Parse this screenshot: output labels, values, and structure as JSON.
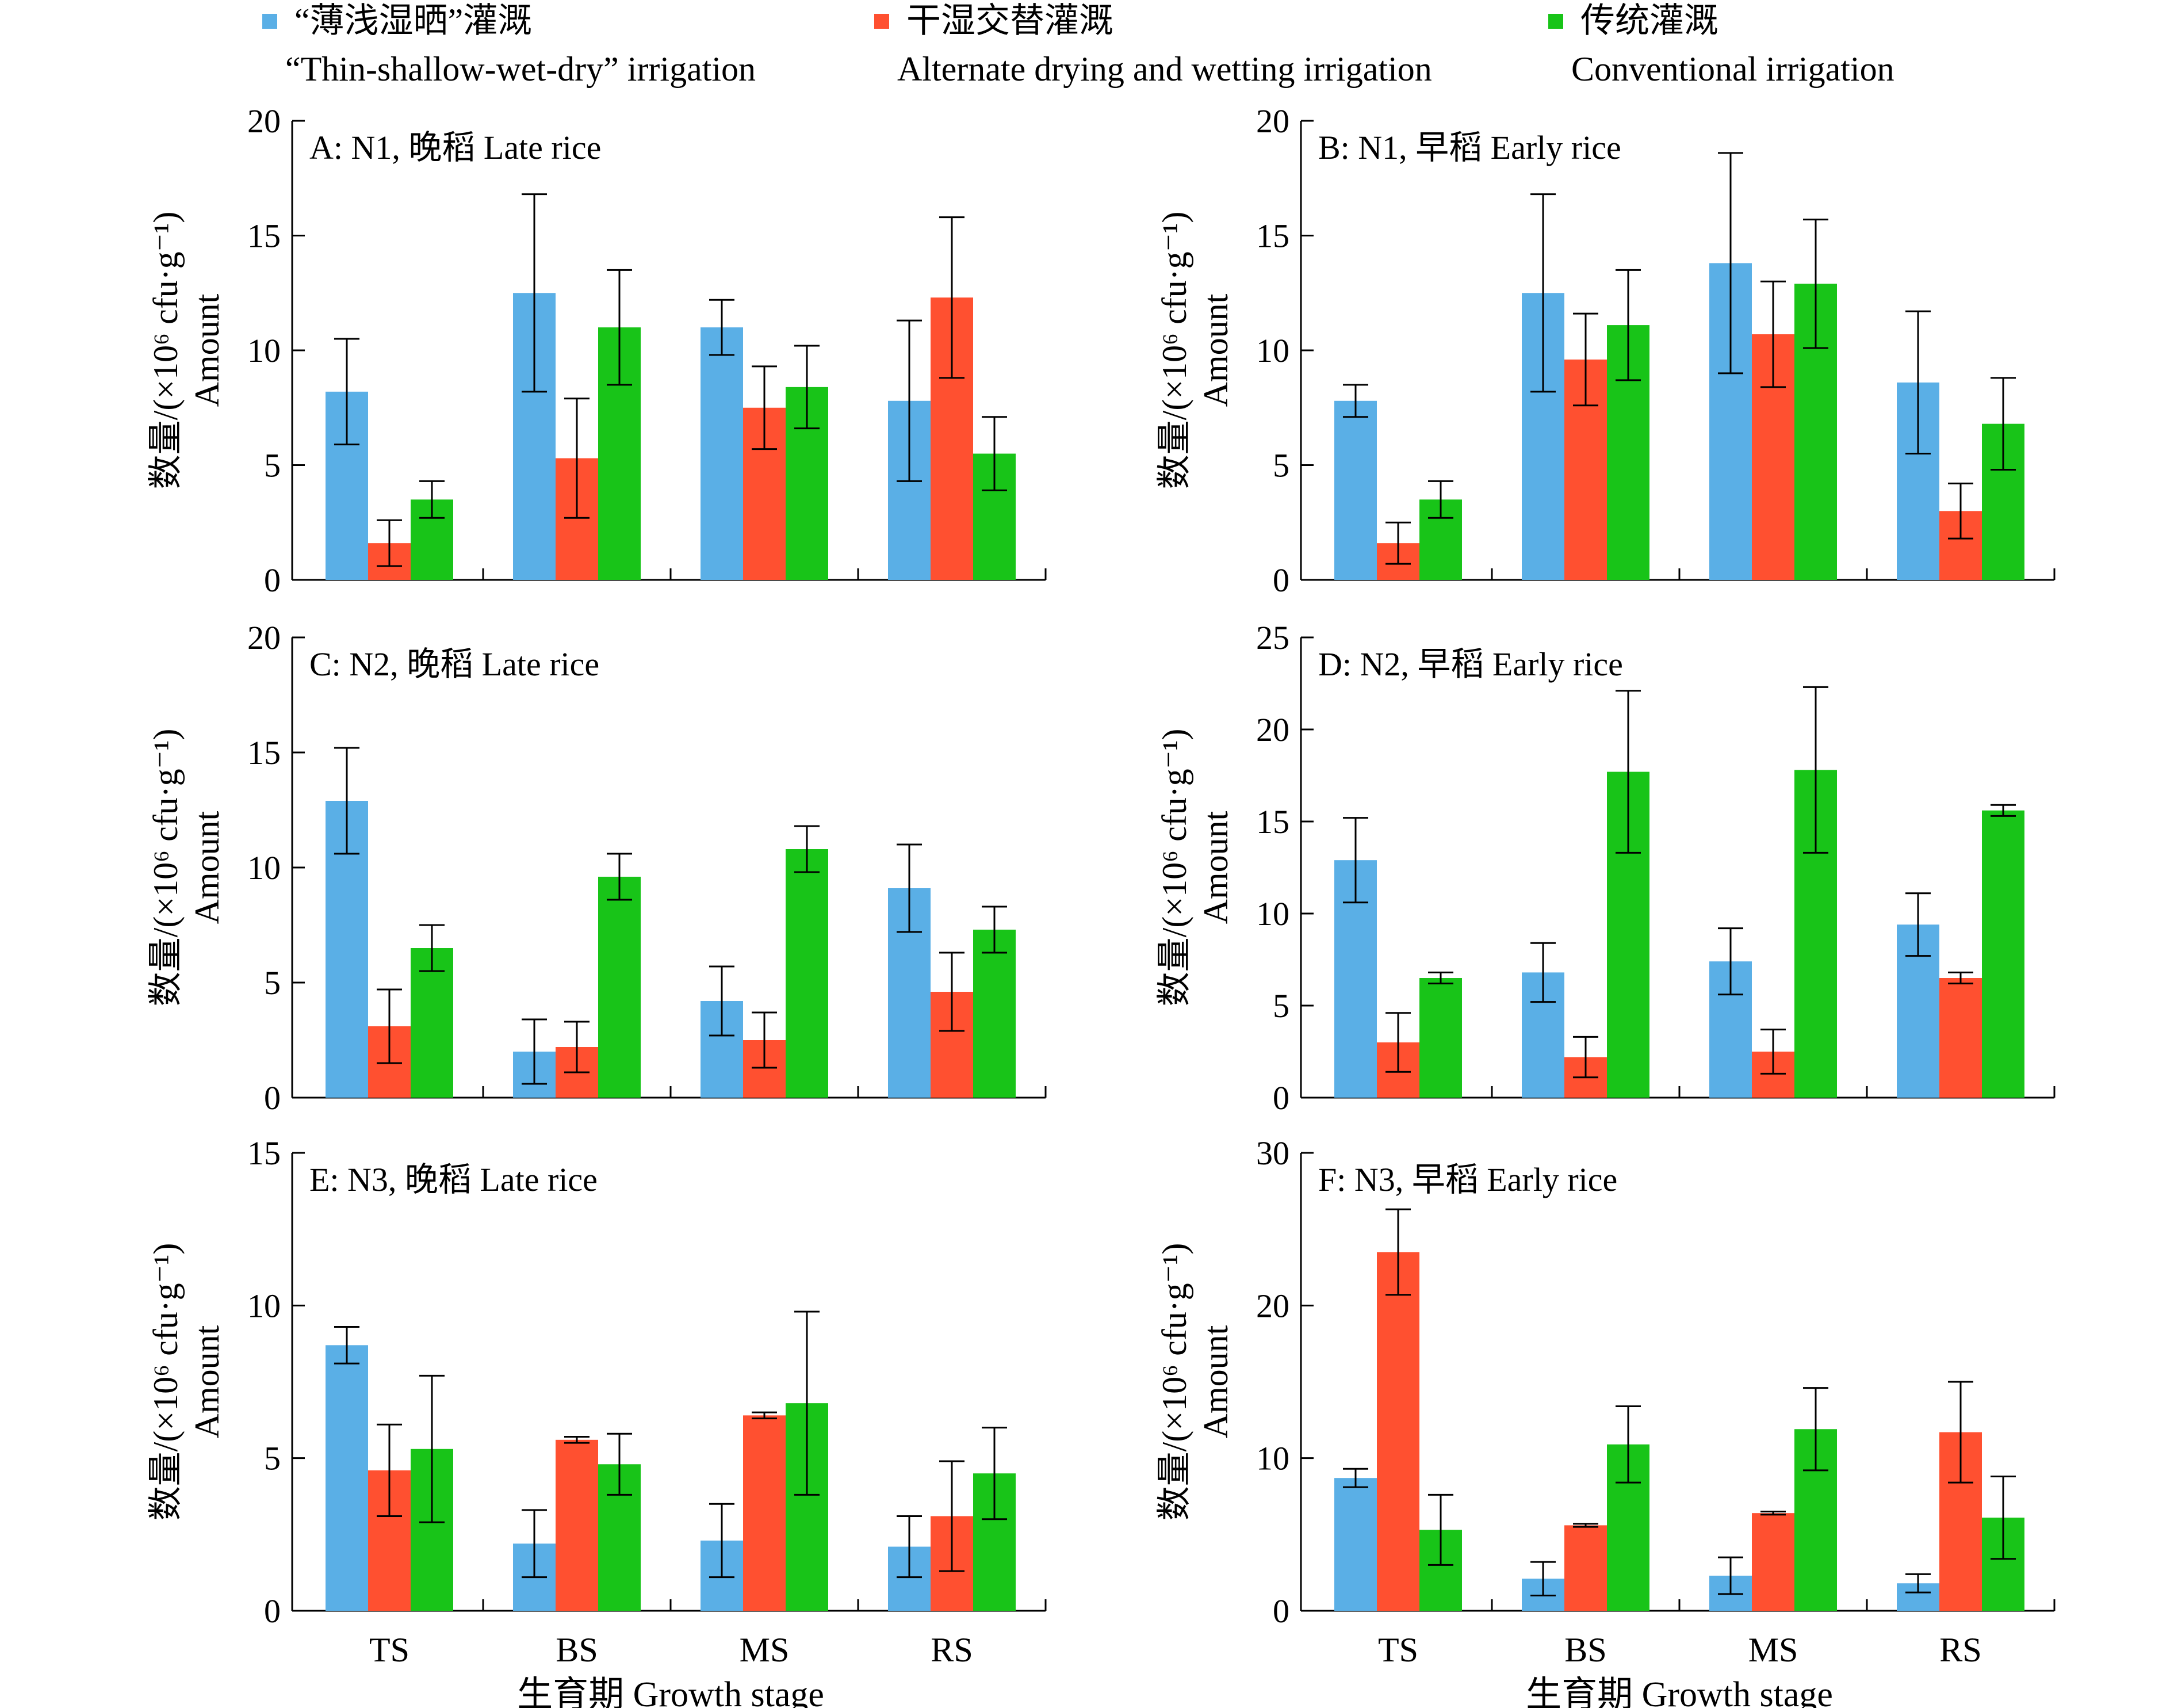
{
  "legend": [
    {
      "zh": "“薄浅湿晒”灌溉",
      "en": "“Thin-shallow-wet-dry” irrigation",
      "color": "#5aafe6"
    },
    {
      "zh": "干湿交替灌溉",
      "en": "Alternate drying and wetting irrigation",
      "color": "#ff5030"
    },
    {
      "zh": "传统灌溉",
      "en": "Conventional irrigation",
      "color": "#18c418"
    }
  ],
  "ylabel_zh": "数量/(×10⁶ cfu·g⁻¹)",
  "ylabel_en": "Amount",
  "xlabel": "生育期 Growth stage",
  "categories": [
    "TS",
    "BS",
    "MS",
    "RS"
  ],
  "chart_data": [
    {
      "type": "bar",
      "title": "A: N1, 晚稻 Late rice",
      "categories": [
        "TS",
        "BS",
        "MS",
        "RS"
      ],
      "ylim": [
        0,
        20
      ],
      "yticks": [
        0,
        5,
        10,
        15,
        20
      ],
      "series": [
        {
          "values": [
            8.2,
            12.5,
            11.0,
            7.8
          ],
          "errors": [
            2.3,
            4.3,
            1.2,
            3.5
          ]
        },
        {
          "values": [
            1.6,
            5.3,
            7.5,
            12.3
          ],
          "errors": [
            1.0,
            2.6,
            1.8,
            3.5
          ]
        },
        {
          "values": [
            3.5,
            11.0,
            8.4,
            5.5
          ],
          "errors": [
            0.8,
            2.5,
            1.8,
            1.6
          ]
        }
      ]
    },
    {
      "type": "bar",
      "title": "B: N1, 早稻 Early rice",
      "categories": [
        "TS",
        "BS",
        "MS",
        "RS"
      ],
      "ylim": [
        0,
        20
      ],
      "yticks": [
        0,
        5,
        10,
        15,
        20
      ],
      "series": [
        {
          "values": [
            7.8,
            12.5,
            13.8,
            8.6
          ],
          "errors": [
            0.7,
            4.3,
            4.8,
            3.1
          ]
        },
        {
          "values": [
            1.6,
            9.6,
            10.7,
            3.0
          ],
          "errors": [
            0.9,
            2.0,
            2.3,
            1.2
          ]
        },
        {
          "values": [
            3.5,
            11.1,
            12.9,
            6.8
          ],
          "errors": [
            0.8,
            2.4,
            2.8,
            2.0
          ]
        }
      ]
    },
    {
      "type": "bar",
      "title": "C: N2, 晚稻 Late rice",
      "categories": [
        "TS",
        "BS",
        "MS",
        "RS"
      ],
      "ylim": [
        0,
        20
      ],
      "yticks": [
        0,
        5,
        10,
        15,
        20
      ],
      "series": [
        {
          "values": [
            12.9,
            2.0,
            4.2,
            9.1
          ],
          "errors": [
            2.3,
            1.4,
            1.5,
            1.9
          ]
        },
        {
          "values": [
            3.1,
            2.2,
            2.5,
            4.6
          ],
          "errors": [
            1.6,
            1.1,
            1.2,
            1.7
          ]
        },
        {
          "values": [
            6.5,
            9.6,
            10.8,
            7.3
          ],
          "errors": [
            1.0,
            1.0,
            1.0,
            1.0
          ]
        }
      ]
    },
    {
      "type": "bar",
      "title": "D: N2, 早稻 Early rice",
      "categories": [
        "TS",
        "BS",
        "MS",
        "RS"
      ],
      "ylim": [
        0,
        25
      ],
      "yticks": [
        0,
        5,
        10,
        15,
        20,
        25
      ],
      "series": [
        {
          "values": [
            12.9,
            6.8,
            7.4,
            9.4
          ],
          "errors": [
            2.3,
            1.6,
            1.8,
            1.7
          ]
        },
        {
          "values": [
            3.0,
            2.2,
            2.5,
            6.5
          ],
          "errors": [
            1.6,
            1.1,
            1.2,
            0.3
          ]
        },
        {
          "values": [
            6.5,
            17.7,
            17.8,
            15.6
          ],
          "errors": [
            0.3,
            4.4,
            4.5,
            0.3
          ]
        }
      ]
    },
    {
      "type": "bar",
      "title": "E: N3, 晚稻 Late rice",
      "categories": [
        "TS",
        "BS",
        "MS",
        "RS"
      ],
      "ylim": [
        0,
        15
      ],
      "yticks": [
        0,
        5,
        10,
        15
      ],
      "series": [
        {
          "values": [
            8.7,
            2.2,
            2.3,
            2.1
          ],
          "errors": [
            0.6,
            1.1,
            1.2,
            1.0
          ]
        },
        {
          "values": [
            4.6,
            5.6,
            6.4,
            3.1
          ],
          "errors": [
            1.5,
            0.1,
            0.1,
            1.8
          ]
        },
        {
          "values": [
            5.3,
            4.8,
            6.8,
            4.5
          ],
          "errors": [
            2.4,
            1.0,
            3.0,
            1.5
          ]
        }
      ]
    },
    {
      "type": "bar",
      "title": "F: N3, 早稻 Early rice",
      "categories": [
        "TS",
        "BS",
        "MS",
        "RS"
      ],
      "ylim": [
        0,
        30
      ],
      "yticks": [
        0,
        10,
        20,
        30
      ],
      "series": [
        {
          "values": [
            8.7,
            2.1,
            2.3,
            1.8
          ],
          "errors": [
            0.6,
            1.1,
            1.2,
            0.6
          ]
        },
        {
          "values": [
            23.5,
            5.6,
            6.4,
            11.7
          ],
          "errors": [
            2.8,
            0.1,
            0.1,
            3.3
          ]
        },
        {
          "values": [
            5.3,
            10.9,
            11.9,
            6.1
          ],
          "errors": [
            2.3,
            2.5,
            2.7,
            2.7
          ]
        }
      ]
    }
  ]
}
